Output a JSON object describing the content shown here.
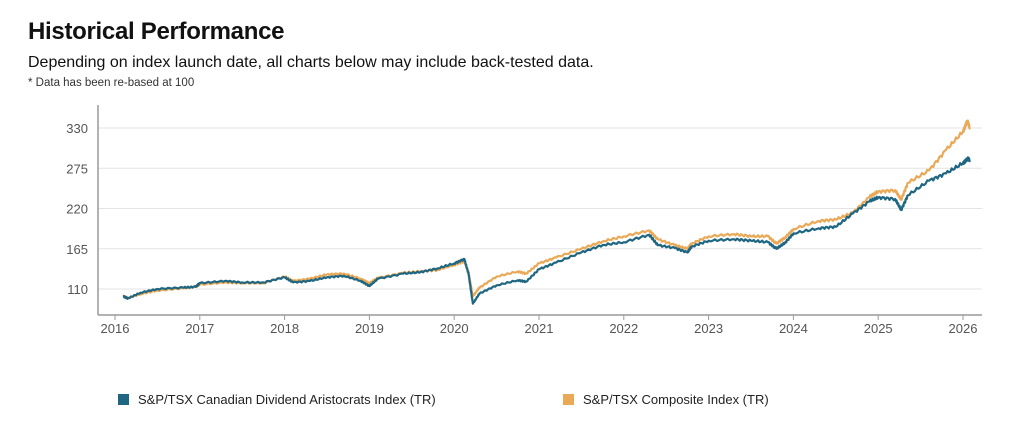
{
  "header": {
    "title": "Historical Performance",
    "subtitle": "Depending on index launch date, all charts below may include back-tested data.",
    "note": "* Data has been re-based at 100"
  },
  "chart_data": {
    "type": "line",
    "title": "",
    "xlabel": "",
    "ylabel": "",
    "xlim": [
      2016,
      2026.2
    ],
    "ylim": [
      76,
      361
    ],
    "x_ticks": [
      "2016",
      "2017",
      "2018",
      "2019",
      "2020",
      "2021",
      "2022",
      "2023",
      "2024",
      "2025",
      "2026"
    ],
    "y_ticks": [
      "110",
      "165",
      "220",
      "275",
      "330"
    ],
    "grid": "horizontal",
    "legend_position": "bottom",
    "series": [
      {
        "name": "S&P/TSX Canadian Dividend Aristocrats Index (TR)",
        "color": "#1f6682",
        "x": [
          2016.1,
          2016.15,
          2016.3,
          2016.5,
          2016.8,
          2016.95,
          2017.0,
          2017.3,
          2017.5,
          2017.75,
          2018.0,
          2018.1,
          2018.3,
          2018.5,
          2018.7,
          2018.9,
          2019.0,
          2019.1,
          2019.4,
          2019.6,
          2019.8,
          2020.0,
          2020.12,
          2020.17,
          2020.22,
          2020.3,
          2020.5,
          2020.75,
          2020.85,
          2021.0,
          2021.2,
          2021.5,
          2021.75,
          2022.0,
          2022.3,
          2022.4,
          2022.6,
          2022.75,
          2022.8,
          2023.0,
          2023.3,
          2023.5,
          2023.7,
          2023.8,
          2023.9,
          2024.0,
          2024.3,
          2024.5,
          2024.7,
          2024.9,
          2025.0,
          2025.2,
          2025.27,
          2025.35,
          2025.6,
          2025.8,
          2026.0,
          2026.05,
          2026.08
        ],
        "y": [
          100,
          97,
          105,
          110,
          112,
          113,
          118,
          121,
          119,
          119,
          126,
          119,
          121,
          126,
          128,
          121,
          114,
          124,
          131,
          133,
          138,
          145,
          151,
          130,
          90,
          104,
          115,
          122,
          120,
          137,
          146,
          160,
          170,
          174,
          184,
          170,
          166,
          160,
          168,
          176,
          178,
          176,
          174,
          165,
          173,
          186,
          193,
          195,
          213,
          230,
          235,
          233,
          218,
          238,
          258,
          268,
          282,
          288,
          286
        ]
      },
      {
        "name": "S&P/TSX Composite Index (TR)",
        "color": "#e9a956",
        "x": [
          2016.1,
          2016.15,
          2016.3,
          2016.5,
          2016.8,
          2016.95,
          2017.0,
          2017.3,
          2017.5,
          2017.75,
          2018.0,
          2018.1,
          2018.3,
          2018.5,
          2018.7,
          2018.9,
          2019.0,
          2019.1,
          2019.4,
          2019.6,
          2019.8,
          2020.0,
          2020.12,
          2020.17,
          2020.22,
          2020.3,
          2020.5,
          2020.75,
          2020.85,
          2021.0,
          2021.2,
          2021.5,
          2021.75,
          2022.0,
          2022.3,
          2022.4,
          2022.6,
          2022.75,
          2022.8,
          2023.0,
          2023.3,
          2023.5,
          2023.7,
          2023.8,
          2023.9,
          2024.0,
          2024.3,
          2024.5,
          2024.7,
          2024.9,
          2025.0,
          2025.2,
          2025.27,
          2025.35,
          2025.6,
          2025.8,
          2026.0,
          2026.05,
          2026.08
        ],
        "y": [
          100,
          98,
          103,
          108,
          111,
          113,
          116,
          119,
          118,
          118,
          127,
          121,
          124,
          130,
          131,
          124,
          118,
          125,
          132,
          134,
          136,
          143,
          148,
          132,
          100,
          112,
          127,
          134,
          131,
          145,
          153,
          165,
          175,
          182,
          190,
          178,
          170,
          165,
          172,
          182,
          185,
          182,
          182,
          172,
          180,
          192,
          203,
          205,
          214,
          236,
          243,
          245,
          232,
          255,
          272,
          300,
          325,
          340,
          330
        ]
      }
    ]
  }
}
